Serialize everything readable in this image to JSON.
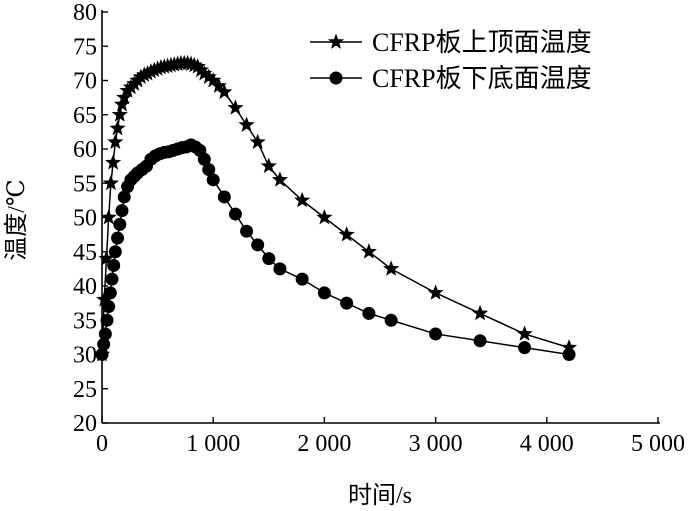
{
  "chart_data": {
    "type": "line",
    "title": "",
    "xlabel": "时间/s",
    "ylabel": "温度/℃",
    "xlim": [
      0,
      5000
    ],
    "ylim": [
      20,
      80
    ],
    "xticks": [
      0,
      1000,
      2000,
      3000,
      4000,
      5000
    ],
    "xtick_labels": [
      "0",
      "1 000",
      "2 000",
      "3 000",
      "4 000",
      "5 000"
    ],
    "yticks": [
      20,
      25,
      30,
      35,
      40,
      45,
      50,
      55,
      60,
      65,
      70,
      75,
      80
    ],
    "ytick_labels": [
      "20",
      "25",
      "30",
      "35",
      "40",
      "45",
      "50",
      "55",
      "60",
      "65",
      "70",
      "75",
      "80"
    ],
    "grid": false,
    "legend_position": "top-right",
    "series": [
      {
        "name": "CFRP板上顶面温度",
        "marker": "star",
        "color": "#000000",
        "x": [
          0,
          20,
          40,
          60,
          80,
          100,
          120,
          140,
          160,
          180,
          200,
          230,
          260,
          290,
          320,
          350,
          380,
          410,
          440,
          470,
          500,
          530,
          560,
          590,
          620,
          650,
          680,
          710,
          740,
          770,
          800,
          830,
          860,
          890,
          920,
          960,
          1000,
          1050,
          1100,
          1200,
          1300,
          1400,
          1500,
          1600,
          1800,
          2000,
          2200,
          2400,
          2600,
          3000,
          3400,
          3800,
          4200
        ],
        "y": [
          30,
          38,
          44,
          50,
          55,
          58,
          61,
          63,
          65,
          66.5,
          67.5,
          68.5,
          69,
          69.5,
          70,
          70.5,
          70.8,
          71,
          71.3,
          71.5,
          71.7,
          71.9,
          72,
          72.1,
          72.2,
          72.3,
          72.4,
          72.5,
          72.5,
          72.5,
          72.4,
          72.2,
          72,
          71.5,
          71,
          70.5,
          70,
          69.2,
          68.3,
          66,
          63.5,
          61,
          57.5,
          55.5,
          52.5,
          50,
          47.5,
          45,
          42.5,
          39,
          36,
          33,
          31
        ]
      },
      {
        "name": "CFRP板下底面温度",
        "marker": "circle",
        "color": "#000000",
        "x": [
          0,
          15,
          30,
          45,
          60,
          75,
          90,
          105,
          120,
          140,
          160,
          180,
          200,
          230,
          260,
          290,
          320,
          360,
          400,
          440,
          480,
          520,
          560,
          600,
          640,
          680,
          720,
          760,
          800,
          840,
          880,
          920,
          960,
          1000,
          1100,
          1200,
          1300,
          1400,
          1500,
          1600,
          1800,
          2000,
          2200,
          2400,
          2600,
          3000,
          3400,
          3800,
          4200
        ],
        "y": [
          30,
          31.5,
          33,
          35,
          37,
          39,
          41,
          43,
          45,
          47,
          49,
          51,
          53,
          54.5,
          55.5,
          56,
          56.5,
          57,
          57.5,
          58.5,
          59,
          59.3,
          59.5,
          59.6,
          59.8,
          60,
          60.2,
          60.3,
          60.6,
          60.3,
          59.8,
          58.5,
          57,
          55.5,
          53,
          50.5,
          48,
          46,
          44,
          42.5,
          41,
          39,
          37.5,
          36,
          35,
          33,
          32,
          31,
          30
        ]
      }
    ]
  }
}
